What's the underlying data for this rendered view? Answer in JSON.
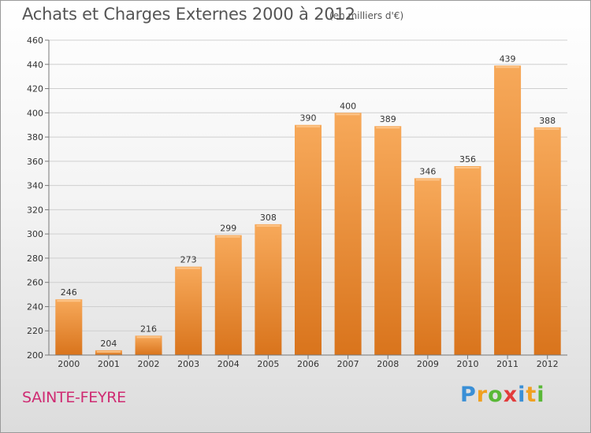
{
  "header": {
    "title": "Achats et Charges Externes 2000 à 2012",
    "unit_note": "(en milliers d'€)"
  },
  "footer": {
    "commune": "SAINTE-FEYRE",
    "logo_text": "Proxiti",
    "logo_letters": [
      {
        "ch": "P",
        "color": "#3a8fd6"
      },
      {
        "ch": "r",
        "color": "#f0a020"
      },
      {
        "ch": "o",
        "color": "#59b837"
      },
      {
        "ch": "x",
        "color": "#e23c3c"
      },
      {
        "ch": "i",
        "color": "#3a8fd6"
      },
      {
        "ch": "t",
        "color": "#f0a020"
      },
      {
        "ch": "i",
        "color": "#59b837"
      }
    ]
  },
  "chart_data": {
    "type": "bar",
    "categories": [
      "2000",
      "2001",
      "2002",
      "2003",
      "2004",
      "2005",
      "2006",
      "2007",
      "2008",
      "2009",
      "2010",
      "2011",
      "2012"
    ],
    "values": [
      246,
      204,
      216,
      273,
      299,
      308,
      390,
      400,
      389,
      346,
      356,
      439,
      388
    ],
    "data_labels": [
      "246",
      "204",
      "216",
      "273",
      "299",
      "308",
      "390",
      "400",
      "389",
      "346",
      "356",
      "439",
      "388"
    ],
    "yticks": [
      "200",
      "220",
      "240",
      "260",
      "280",
      "300",
      "320",
      "340",
      "360",
      "380",
      "400",
      "420",
      "440",
      "460"
    ],
    "ylim": [
      200,
      460
    ],
    "grid": true,
    "colors": {
      "bar_light": "#f7a95a",
      "bar_dark": "#d9741c",
      "grid": "#cfcfcf",
      "axis_text": "#333333"
    }
  }
}
